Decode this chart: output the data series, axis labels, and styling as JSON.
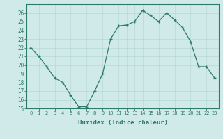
{
  "x": [
    0,
    1,
    2,
    3,
    4,
    5,
    6,
    7,
    8,
    9,
    10,
    11,
    12,
    13,
    14,
    15,
    16,
    17,
    18,
    19,
    20,
    21,
    22,
    23
  ],
  "y": [
    22.0,
    21.0,
    19.8,
    18.5,
    18.0,
    16.5,
    15.2,
    15.2,
    17.0,
    19.0,
    23.0,
    24.5,
    24.6,
    25.0,
    26.3,
    25.7,
    25.0,
    26.0,
    25.2,
    24.3,
    22.7,
    19.8,
    19.8,
    18.5
  ],
  "xlabel": "Humidex (Indice chaleur)",
  "ylim": [
    15,
    27
  ],
  "xlim": [
    -0.5,
    23.5
  ],
  "yticks": [
    15,
    16,
    17,
    18,
    19,
    20,
    21,
    22,
    23,
    24,
    25,
    26
  ],
  "xticks": [
    0,
    1,
    2,
    3,
    4,
    5,
    6,
    7,
    8,
    9,
    10,
    11,
    12,
    13,
    14,
    15,
    16,
    17,
    18,
    19,
    20,
    21,
    22,
    23
  ],
  "line_color": "#2d7a6a",
  "marker_color": "#2d7a6a",
  "bg_color": "#d0eaea",
  "grid_major_color": "#b8d8d8",
  "grid_minor_color": "#c4e0e0",
  "tick_color": "#2d7a6a",
  "spine_color": "#2d7a6a"
}
